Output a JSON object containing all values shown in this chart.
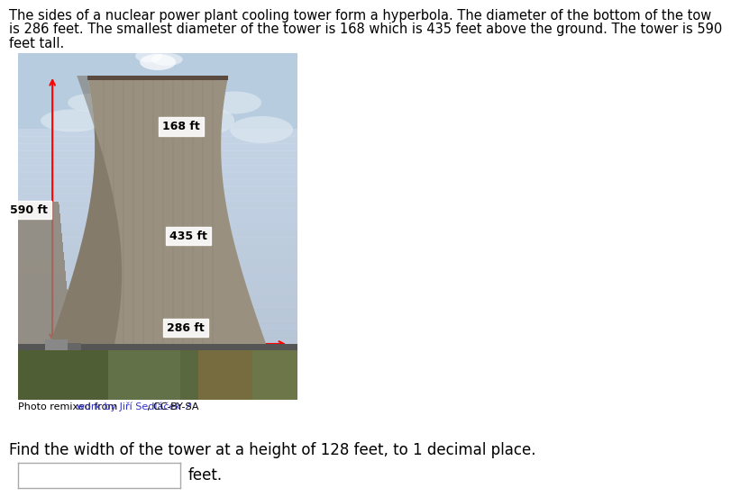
{
  "title_line1": "The sides of a nuclear power plant cooling tower form a hyperbola. The diameter of the bottom of the tow",
  "title_line2": "is 286 feet. The smallest diameter of the tower is 168 which is 435 feet above the ground. The tower is 590",
  "title_line3": "feet tall.",
  "label_168": "168 ft",
  "label_435": "435 ft",
  "label_286": "286 ft",
  "label_590": "590 ft",
  "question_text": "Find the width of the tower at a height of 128 feet, to 1 decimal place.",
  "photo_credit_prefix": "Photo remixed from ",
  "photo_credit_link": "work by Jiří Sedláček ↗",
  "photo_credit_suffix": ", CC-BY-SA",
  "feet_label": "feet.",
  "title_fontsize": 10.5,
  "question_fontsize": 12,
  "credit_fontsize": 8,
  "bg_color": "#ffffff",
  "text_color": "#000000",
  "arrow_color": "#ff0000",
  "link_color": "#3333cc",
  "sky_color_top": "#b8cce0",
  "sky_color_mid": "#c8d8e8",
  "sky_color_bot": "#d0dde8",
  "tower_color": "#a09888",
  "tower_dark": "#888070",
  "ground_color": "#6b7a50",
  "ground_dark": "#8a7040"
}
